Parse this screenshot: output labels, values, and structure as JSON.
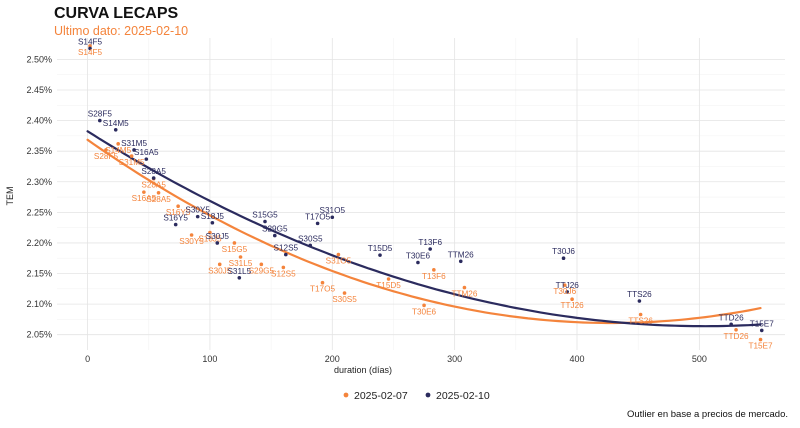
{
  "chart_data": {
    "type": "scatter",
    "title": "CURVA LECAPS",
    "subtitle": "Ultimo dato: 2025-02-10",
    "xlabel": "duration (días)",
    "ylabel": "TEM",
    "xlim": [
      -25,
      570
    ],
    "ylim": [
      2.025,
      2.535
    ],
    "x_ticks": [
      0,
      100,
      200,
      300,
      400,
      500
    ],
    "x_tick_labels": [
      "0",
      "100",
      "200",
      "300",
      "400",
      "500"
    ],
    "y_ticks": [
      2.05,
      2.1,
      2.15,
      2.2,
      2.25,
      2.3,
      2.35,
      2.4,
      2.45,
      2.5
    ],
    "y_tick_labels": [
      "2.05%",
      "2.10%",
      "2.15%",
      "2.20%",
      "2.25%",
      "2.30%",
      "2.35%",
      "2.40%",
      "2.45%",
      "2.50%"
    ],
    "grid": true,
    "legend": {
      "position": "bottom",
      "entries": [
        {
          "name": "2025-02-07",
          "color": "#f4843c"
        },
        {
          "name": "2025-02-10",
          "color": "#2b2b5e"
        }
      ]
    },
    "series": [
      {
        "name": "2025-02-07",
        "color": "#f4843c",
        "points": [
          {
            "label": "S14F5",
            "x": 2,
            "y": 2.522
          },
          {
            "label": "S28F5",
            "x": 15,
            "y": 2.352
          },
          {
            "label": "S14M5",
            "x": 25,
            "y": 2.362
          },
          {
            "label": "S31M5",
            "x": 36,
            "y": 2.342
          },
          {
            "label": "S28A5",
            "x": 54,
            "y": 2.305
          },
          {
            "label": "S16A5",
            "x": 46,
            "y": 2.283
          },
          {
            "label": "S28A5",
            "x": 58,
            "y": 2.282
          },
          {
            "label": "S16Y5",
            "x": 74,
            "y": 2.26
          },
          {
            "label": "S30Y5",
            "x": 85,
            "y": 2.213
          },
          {
            "label": "S18J5",
            "x": 100,
            "y": 2.217
          },
          {
            "label": "S15G5",
            "x": 120,
            "y": 2.2
          },
          {
            "label": "S30J5",
            "x": 108,
            "y": 2.165
          },
          {
            "label": "S31L5",
            "x": 125,
            "y": 2.177
          },
          {
            "label": "S29G5",
            "x": 142,
            "y": 2.165
          },
          {
            "label": "S12S5",
            "x": 160,
            "y": 2.16
          },
          {
            "label": "S31O5",
            "x": 205,
            "y": 2.181
          },
          {
            "label": "T17O5",
            "x": 192,
            "y": 2.135
          },
          {
            "label": "S30S5",
            "x": 210,
            "y": 2.118
          },
          {
            "label": "T15D5",
            "x": 246,
            "y": 2.141
          },
          {
            "label": "T30E6",
            "x": 275,
            "y": 2.098
          },
          {
            "label": "T13F6",
            "x": 283,
            "y": 2.156
          },
          {
            "label": "TTM26",
            "x": 308,
            "y": 2.127
          },
          {
            "label": "T30J6",
            "x": 390,
            "y": 2.131
          },
          {
            "label": "TTJ26",
            "x": 396,
            "y": 2.108
          },
          {
            "label": "TTS26",
            "x": 452,
            "y": 2.083
          },
          {
            "label": "TTD26",
            "x": 530,
            "y": 2.058
          },
          {
            "label": "T15E7",
            "x": 550,
            "y": 2.042
          }
        ]
      },
      {
        "name": "2025-02-10",
        "color": "#2b2b5e",
        "points": [
          {
            "label": "S14F5",
            "x": 2,
            "y": 2.518
          },
          {
            "label": "S28F5",
            "x": 10,
            "y": 2.4
          },
          {
            "label": "S14M5",
            "x": 23,
            "y": 2.385
          },
          {
            "label": "S31M5",
            "x": 38,
            "y": 2.352
          },
          {
            "label": "S16A5",
            "x": 48,
            "y": 2.337
          },
          {
            "label": "S28A5",
            "x": 54,
            "y": 2.306
          },
          {
            "label": "S30Y5",
            "x": 90,
            "y": 2.243
          },
          {
            "label": "S16Y5",
            "x": 72,
            "y": 2.23
          },
          {
            "label": "S18J5",
            "x": 102,
            "y": 2.233
          },
          {
            "label": "S15G5",
            "x": 145,
            "y": 2.235
          },
          {
            "label": "S29G5",
            "x": 153,
            "y": 2.212
          },
          {
            "label": "S30J5",
            "x": 106,
            "y": 2.2
          },
          {
            "label": "S12S5",
            "x": 162,
            "y": 2.181
          },
          {
            "label": "T17O5",
            "x": 188,
            "y": 2.232
          },
          {
            "label": "S31O5",
            "x": 200,
            "y": 2.242
          },
          {
            "label": "S30S5",
            "x": 182,
            "y": 2.196
          },
          {
            "label": "S31L5",
            "x": 124,
            "y": 2.143
          },
          {
            "label": "T15D5",
            "x": 239,
            "y": 2.18
          },
          {
            "label": "T30E6",
            "x": 270,
            "y": 2.168
          },
          {
            "label": "T13F6",
            "x": 280,
            "y": 2.19
          },
          {
            "label": "TTM26",
            "x": 305,
            "y": 2.17
          },
          {
            "label": "T30J6",
            "x": 389,
            "y": 2.175
          },
          {
            "label": "TTJ26",
            "x": 392,
            "y": 2.12
          },
          {
            "label": "TTS26",
            "x": 451,
            "y": 2.105
          },
          {
            "label": "TTD26",
            "x": 526,
            "y": 2.067
          },
          {
            "label": "T15E7",
            "x": 551,
            "y": 2.057
          }
        ]
      }
    ],
    "fit_curves": [
      {
        "series": "2025-02-07",
        "color": "#f4843c",
        "coef": [
          2.3686,
          -0.001399,
          1.634e-06
        ]
      },
      {
        "series": "2025-02-10",
        "color": "#2b2b5e",
        "coef": [
          2.3825,
          -0.001264,
          1.254e-06
        ]
      }
    ],
    "caption": "Outlier en base a precios de mercado."
  }
}
